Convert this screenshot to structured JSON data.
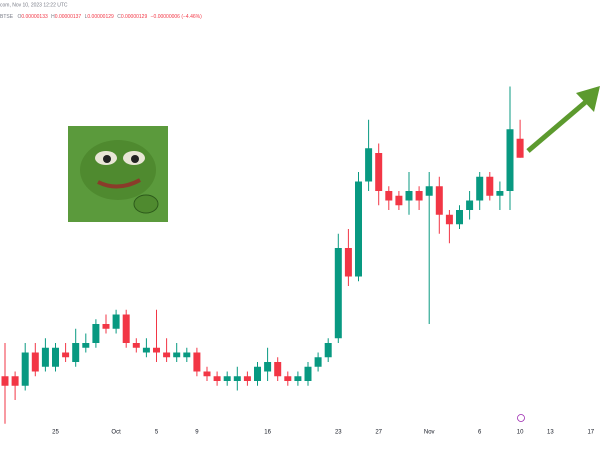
{
  "header": {
    "source": "com, Nov 10, 2023 12:22 UTC",
    "exchange": "BTSE",
    "ohlc": [
      {
        "label": "O",
        "value": "0.00000133"
      },
      {
        "label": "H",
        "value": "0.00000137"
      },
      {
        "label": "L",
        "value": "0.00000129"
      },
      {
        "label": "C",
        "value": "0.00000129"
      }
    ],
    "change": "−0.00000006 (−4.46%)"
  },
  "chart_data": {
    "type": "candlestick",
    "up_color": "#089981",
    "down_color": "#f23645",
    "categories": [
      null,
      null,
      null,
      null,
      null,
      "25",
      null,
      null,
      null,
      null,
      null,
      "Oct",
      null,
      null,
      null,
      "5",
      null,
      null,
      null,
      "9",
      null,
      null,
      null,
      null,
      null,
      null,
      "16",
      null,
      null,
      null,
      null,
      null,
      null,
      "23",
      null,
      null,
      null,
      "27",
      null,
      null,
      null,
      null,
      "Nov",
      null,
      null,
      null,
      null,
      "6",
      null,
      null,
      null,
      "10",
      null,
      null,
      "13",
      null,
      null,
      null,
      "17",
      null,
      null
    ],
    "open": [
      8.3e-07,
      8.3e-07,
      8.1e-07,
      8.8e-07,
      8.5e-07,
      8.5e-07,
      8.8e-07,
      8.6e-07,
      8.9e-07,
      9e-07,
      9.4e-07,
      9.3e-07,
      9.6e-07,
      9e-07,
      8.8e-07,
      8.9e-07,
      8.8e-07,
      8.7e-07,
      8.7e-07,
      8.8e-07,
      8.4e-07,
      8.3e-07,
      8.2e-07,
      8.2e-07,
      8.3e-07,
      8.2e-07,
      8.4e-07,
      8.6e-07,
      8.3e-07,
      8.2e-07,
      8.2e-07,
      8.5e-07,
      8.7e-07,
      9.1e-07,
      1.1e-06,
      1.04e-06,
      1.24e-06,
      1.3e-06,
      1.22e-06,
      1.21e-06,
      1.2e-06,
      1.22e-06,
      1.21e-06,
      1.23e-06,
      1.17e-06,
      1.15e-06,
      1.18e-06,
      1.2e-06,
      1.25e-06,
      1.21e-06,
      1.22e-06,
      1.33e-06,
      null,
      null,
      null,
      null,
      null,
      null,
      null,
      null,
      null
    ],
    "high": [
      9e-07,
      8.4e-07,
      9e-07,
      9e-07,
      9.1e-07,
      9e-07,
      9e-07,
      9.3e-07,
      9.2e-07,
      9.5e-07,
      9.6e-07,
      9.7e-07,
      9.7e-07,
      9.1e-07,
      9.1e-07,
      9.7e-07,
      9.1e-07,
      9e-07,
      8.9e-07,
      8.9e-07,
      8.5e-07,
      8.4e-07,
      8.4e-07,
      8.5e-07,
      8.4e-07,
      8.6e-07,
      8.9e-07,
      8.7e-07,
      8.4e-07,
      8.4e-07,
      8.6e-07,
      8.8e-07,
      9.1e-07,
      1.13e-06,
      1.14e-06,
      1.26e-06,
      1.37e-06,
      1.32e-06,
      1.23e-06,
      1.22e-06,
      1.26e-06,
      1.23e-06,
      1.26e-06,
      1.25e-06,
      1.18e-06,
      1.19e-06,
      1.22e-06,
      1.26e-06,
      1.26e-06,
      1.24e-06,
      1.44e-06,
      1.37e-06,
      null,
      null,
      null,
      null,
      null,
      null,
      null,
      null,
      null
    ],
    "low": [
      7.3e-07,
      7.8e-07,
      8e-07,
      8.3e-07,
      8.4e-07,
      8.4e-07,
      8.6e-07,
      8.5e-07,
      8.8e-07,
      8.9e-07,
      9.2e-07,
      9.2e-07,
      8.9e-07,
      8.8e-07,
      8.7e-07,
      8.6e-07,
      8.6e-07,
      8.6e-07,
      8.6e-07,
      8.3e-07,
      8.2e-07,
      8.1e-07,
      8.1e-07,
      8e-07,
      8.1e-07,
      8.1e-07,
      8.2e-07,
      8.2e-07,
      8.1e-07,
      8.1e-07,
      8.1e-07,
      8.4e-07,
      8.6e-07,
      9e-07,
      1.02e-06,
      1.03e-06,
      1.22e-06,
      1.19e-06,
      1.18e-06,
      1.18e-06,
      1.17e-06,
      1.18e-06,
      9.4e-07,
      1.13e-06,
      1.11e-06,
      1.14e-06,
      1.16e-06,
      1.18e-06,
      1.2e-06,
      1.18e-06,
      1.18e-06,
      1.29e-06,
      null,
      null,
      null,
      null,
      null,
      null,
      null,
      null,
      null
    ],
    "close": [
      8.1e-07,
      8.1e-07,
      8.8e-07,
      8.4e-07,
      8.9e-07,
      8.9e-07,
      8.7e-07,
      9e-07,
      9e-07,
      9.4e-07,
      9.3e-07,
      9.6e-07,
      9e-07,
      8.9e-07,
      8.9e-07,
      8.8e-07,
      8.7e-07,
      8.8e-07,
      8.8e-07,
      8.4e-07,
      8.3e-07,
      8.2e-07,
      8.3e-07,
      8.3e-07,
      8.2e-07,
      8.5e-07,
      8.6e-07,
      8.3e-07,
      8.2e-07,
      8.3e-07,
      8.5e-07,
      8.7e-07,
      9e-07,
      1.1e-06,
      1.04e-06,
      1.24e-06,
      1.31e-06,
      1.22e-06,
      1.2e-06,
      1.19e-06,
      1.22e-06,
      1.2e-06,
      1.23e-06,
      1.17e-06,
      1.15e-06,
      1.18e-06,
      1.2e-06,
      1.25e-06,
      1.21e-06,
      1.22e-06,
      1.35e-06,
      1.29e-06,
      null,
      null,
      null,
      null,
      null,
      null,
      null,
      null,
      null
    ],
    "ylim": [
      7.2e-07,
      1.58e-06
    ]
  }
}
